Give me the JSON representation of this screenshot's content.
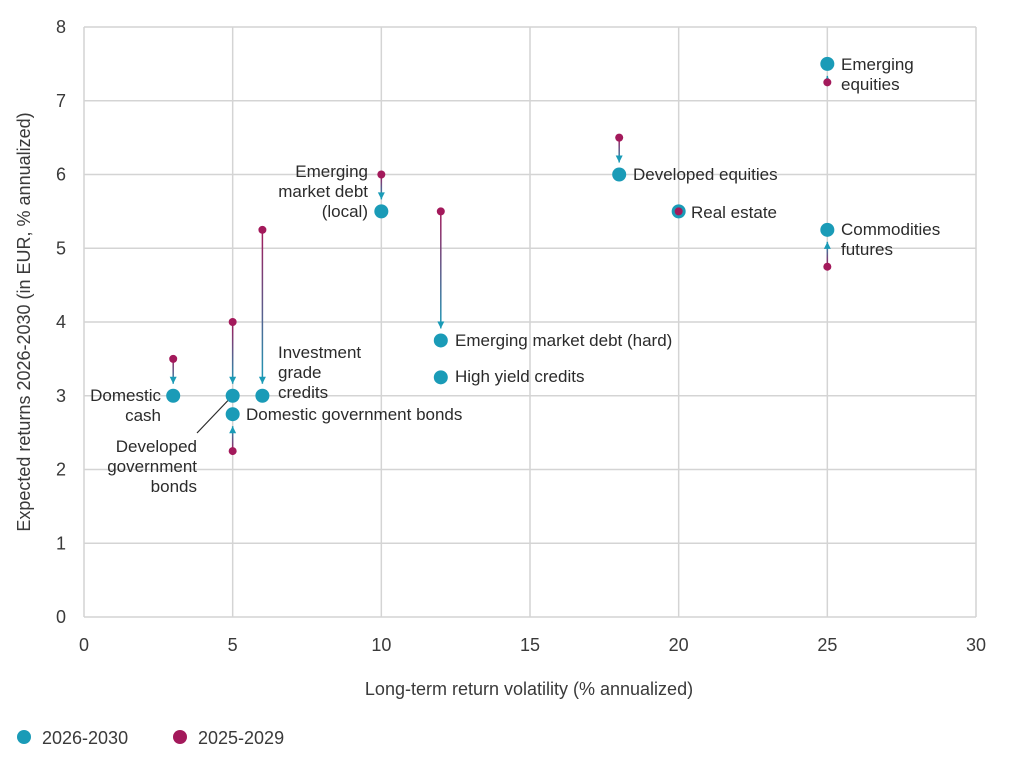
{
  "chart_data": {
    "type": "scatter",
    "xlabel": "Long-term return volatility (% annualized)",
    "ylabel": "Expected returns 2026-2030 (in EUR, % annualized)",
    "xlim": [
      0,
      30
    ],
    "ylim": [
      0,
      8
    ],
    "xticks": [
      0,
      5,
      10,
      15,
      20,
      25,
      30
    ],
    "yticks": [
      0,
      1,
      2,
      3,
      4,
      5,
      6,
      7,
      8
    ],
    "grid": true,
    "legend_position": "bottom-left",
    "series": [
      {
        "name": "2026-2030",
        "color": "#1a9bb7"
      },
      {
        "name": "2025-2029",
        "color": "#a3195b"
      }
    ],
    "points": [
      {
        "label": "Domestic cash",
        "lines": [
          "Domestic",
          "cash"
        ],
        "x": 3,
        "y_new": 3.0,
        "y_old": 3.5
      },
      {
        "label": "Developed government bonds",
        "lines": [
          "Developed",
          "government",
          "bonds"
        ],
        "x": 5,
        "y_new": 3.0,
        "y_old": 4.0
      },
      {
        "label": "Domestic government bonds",
        "lines": [
          "Domestic government bonds"
        ],
        "x": 5,
        "y_new": 2.75,
        "y_old": 2.25
      },
      {
        "label": "Investment grade credits",
        "lines": [
          "Investment",
          "grade",
          "credits"
        ],
        "x": 6,
        "y_new": 3.0,
        "y_old": 5.25
      },
      {
        "label": "Emerging market debt (local)",
        "lines": [
          "Emerging",
          "market debt",
          "(local)"
        ],
        "x": 10,
        "y_new": 5.5,
        "y_old": 6.0
      },
      {
        "label": "Emerging market debt (hard)",
        "lines": [
          "Emerging market debt (hard)"
        ],
        "x": 12,
        "y_new": 3.75,
        "y_old": 5.5
      },
      {
        "label": "High yield credits",
        "lines": [
          "High yield credits"
        ],
        "x": 12,
        "y_new": 3.25,
        "y_old": null
      },
      {
        "label": "Developed equities",
        "lines": [
          "Developed equities"
        ],
        "x": 18,
        "y_new": 6.0,
        "y_old": 6.5
      },
      {
        "label": "Real estate",
        "lines": [
          "Real estate"
        ],
        "x": 20,
        "y_new": 5.5,
        "y_old": 5.5
      },
      {
        "label": "Emerging equities",
        "lines": [
          "Emerging",
          "equities"
        ],
        "x": 25,
        "y_new": 7.5,
        "y_old": 7.25
      },
      {
        "label": "Commodities futures",
        "lines": [
          "Commodities",
          "futures"
        ],
        "x": 25,
        "y_new": 5.25,
        "y_old": 4.75
      }
    ]
  }
}
